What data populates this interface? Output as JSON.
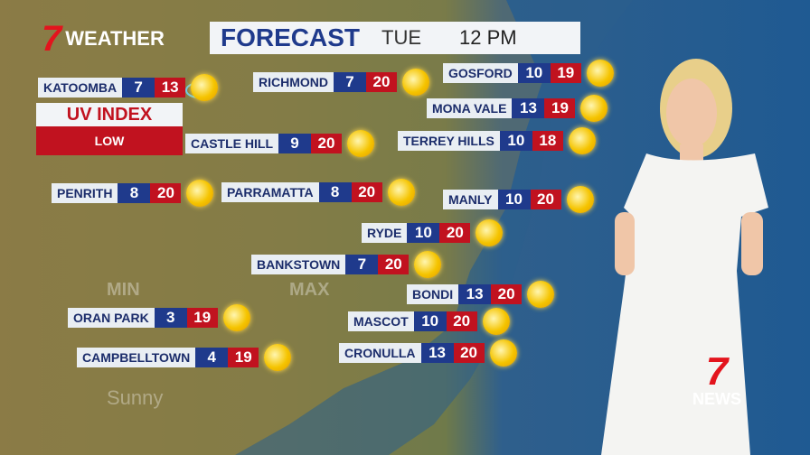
{
  "header": {
    "brand": "WEATHER",
    "title": "FORECAST",
    "day": "TUE",
    "time": "12 PM"
  },
  "uv": {
    "title": "UV INDEX",
    "level": "LOW"
  },
  "background": {
    "min": "MIN",
    "max": "MAX",
    "condition": "Sunny"
  },
  "logo": "NEWS",
  "locations": [
    {
      "name": "KATOOMBA",
      "min": 7,
      "max": 13
    },
    {
      "name": "RICHMOND",
      "min": 7,
      "max": 20
    },
    {
      "name": "GOSFORD",
      "min": 10,
      "max": 19
    },
    {
      "name": "MONA VALE",
      "min": 13,
      "max": 19
    },
    {
      "name": "CASTLE HILL",
      "min": 9,
      "max": 20
    },
    {
      "name": "TERREY HILLS",
      "min": 10,
      "max": 18
    },
    {
      "name": "PENRITH",
      "min": 8,
      "max": 20
    },
    {
      "name": "PARRAMATTA",
      "min": 8,
      "max": 20
    },
    {
      "name": "MANLY",
      "min": 10,
      "max": 20
    },
    {
      "name": "RYDE",
      "min": 10,
      "max": 20
    },
    {
      "name": "BANKSTOWN",
      "min": 7,
      "max": 20
    },
    {
      "name": "BONDI",
      "min": 13,
      "max": 20
    },
    {
      "name": "ORAN PARK",
      "min": 3,
      "max": 19
    },
    {
      "name": "MASCOT",
      "min": 10,
      "max": 20
    },
    {
      "name": "CAMPBELLTOWN",
      "min": 4,
      "max": 19
    },
    {
      "name": "CRONULLA",
      "min": 13,
      "max": 20
    }
  ]
}
